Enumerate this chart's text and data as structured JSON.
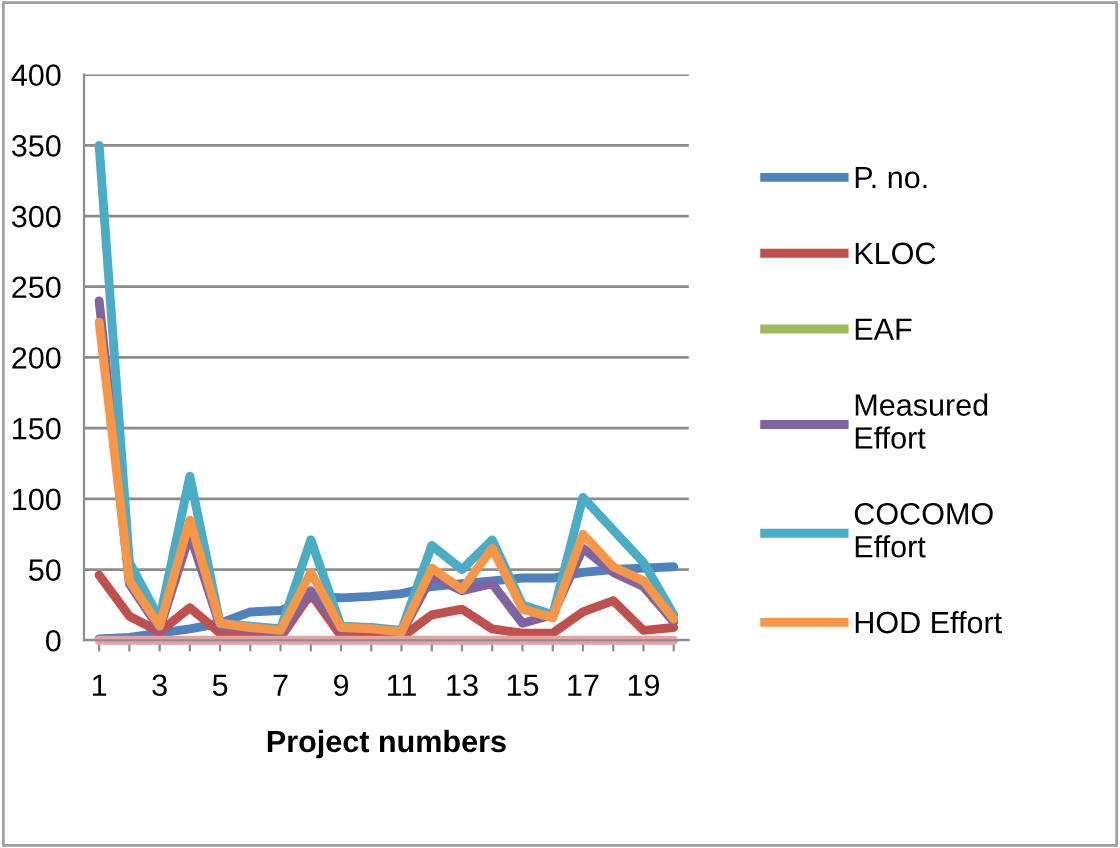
{
  "chart_data": {
    "type": "line",
    "xlabel": "Project numbers",
    "categories": [
      "1",
      null,
      "3",
      null,
      "5",
      null,
      "7",
      null,
      "9",
      null,
      "11",
      null,
      "13",
      null,
      "15",
      null,
      "17",
      null,
      "19",
      null
    ],
    "ylim": [
      0,
      400
    ],
    "yticks": [
      0,
      50,
      100,
      150,
      200,
      250,
      300,
      350,
      400
    ],
    "grid": "y",
    "legend": "right",
    "marker": "none",
    "line_style": "solid",
    "series": [
      {
        "name": "P. no.",
        "color": "#4f81bd",
        "values": [
          1,
          2,
          5,
          8,
          12,
          20,
          21,
          30,
          30,
          31,
          33,
          38,
          40,
          42,
          44,
          44,
          48,
          50,
          51,
          52
        ]
      },
      {
        "name": "KLOC",
        "color": "#c0504d",
        "values": [
          46,
          17,
          6,
          23,
          5,
          3,
          2,
          33,
          3,
          3,
          2,
          18,
          22,
          8,
          5,
          5,
          20,
          28,
          7,
          9
        ]
      },
      {
        "name": "EAF",
        "color": "#9bbb59",
        "values": [
          null,
          null,
          null,
          null,
          null,
          null,
          null,
          null,
          null,
          null,
          null,
          null,
          null,
          null,
          null,
          null,
          null,
          null,
          null,
          null
        ]
      },
      {
        "name": "Measured\nEffort",
        "color": "#8064a2",
        "values": [
          240,
          40,
          8,
          75,
          10,
          8,
          5,
          35,
          8,
          8,
          5,
          45,
          35,
          40,
          12,
          18,
          65,
          48,
          38,
          13
        ]
      },
      {
        "name": "COCOMO\nEffort",
        "color": "#4bacc6",
        "values": [
          350,
          55,
          15,
          116,
          12,
          10,
          8,
          71,
          10,
          9,
          7,
          67,
          50,
          71,
          25,
          18,
          101,
          78,
          55,
          18
        ]
      },
      {
        "name": "HOD Effort",
        "color": "#f79646",
        "values": [
          225,
          42,
          10,
          85,
          12,
          9,
          7,
          48,
          9,
          8,
          6,
          51,
          36,
          65,
          22,
          16,
          75,
          52,
          42,
          15
        ]
      },
      {
        "color": "#e6a1a0",
        "values": [
          0,
          0,
          0,
          0,
          0,
          0,
          0,
          0,
          0,
          0,
          0,
          0,
          0,
          0,
          0,
          0,
          0,
          0,
          0,
          0
        ]
      }
    ]
  }
}
